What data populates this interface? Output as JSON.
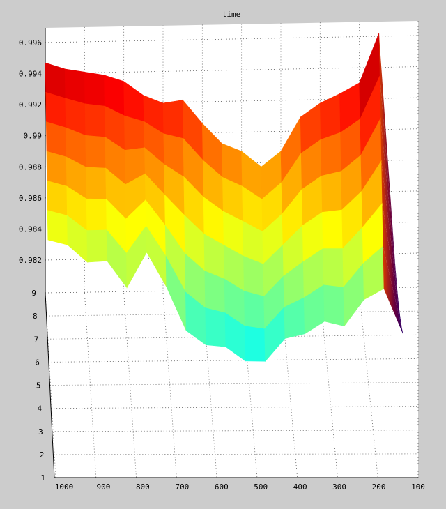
{
  "chart_data": {
    "type": "surface",
    "title": "time",
    "xlabel": "",
    "ylabel": "",
    "zlabel": "",
    "grid": true,
    "colormap": "jet",
    "x_ticks": [
      "1000",
      "900",
      "800",
      "700",
      "600",
      "500",
      "400",
      "300",
      "200",
      "100"
    ],
    "y_ticks": [
      "1",
      "2",
      "3",
      "4",
      "5",
      "6",
      "7",
      "8",
      "9"
    ],
    "z_ticks": [
      "0.982",
      "0.984",
      "0.986",
      "0.988",
      "0.99",
      "0.992",
      "0.994",
      "0.996"
    ],
    "x": [
      1000,
      950,
      900,
      850,
      800,
      750,
      700,
      650,
      600,
      550,
      500,
      450,
      400,
      350,
      300,
      250,
      200,
      150,
      100
    ],
    "zlim": [
      0.976,
      0.9965
    ],
    "back_edge_z": [
      0.9947,
      0.9943,
      0.9941,
      0.9939,
      0.9935,
      0.9926,
      0.9921,
      0.9923,
      0.9908,
      0.9895,
      0.989,
      0.988,
      0.989,
      0.9912,
      0.9921,
      0.9927,
      0.9934,
      0.9966,
      0.9786
    ],
    "front_edge_z": [
      0.9833,
      0.9831,
      0.9821,
      0.9823,
      0.9807,
      0.9831,
      0.981,
      0.9783,
      0.9775,
      0.9775,
      0.9767,
      0.9768,
      0.9783,
      0.9786,
      0.9794,
      0.9791,
      0.9808,
      0.9815,
      0.9785
    ]
  }
}
